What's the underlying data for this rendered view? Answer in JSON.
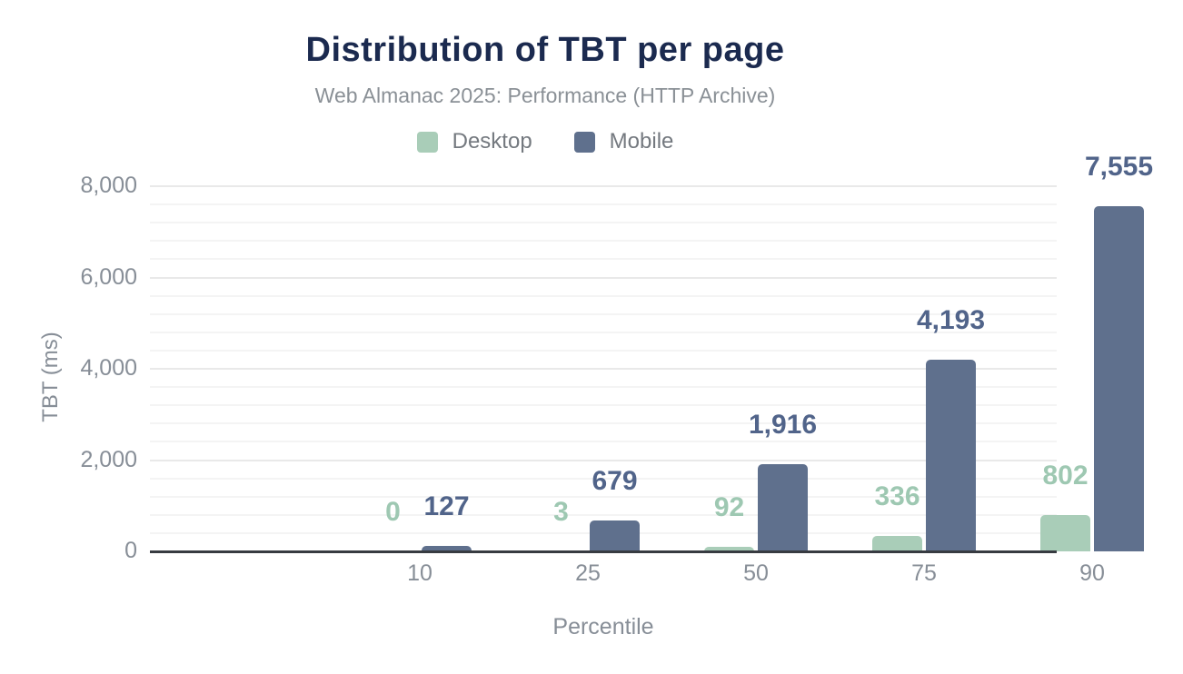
{
  "title": "Distribution of TBT per page",
  "subtitle": "Web Almanac 2025: Performance (HTTP Archive)",
  "legend": {
    "items": [
      {
        "label": "Desktop",
        "color": "#a9cdb8"
      },
      {
        "label": "Mobile",
        "color": "#5f708d"
      }
    ]
  },
  "colors": {
    "title": "#1b2a4f",
    "subtitle": "#8a9096",
    "axis_text": "#878e97",
    "axis_line": "#373b41",
    "grid_major": "#e9e9e9",
    "grid_minor": "#f4f4f4",
    "desktop": "#a9cdb8",
    "desktop_label": "#9ec8b2",
    "mobile": "#5f708d",
    "mobile_label": "#51648a"
  },
  "chart_data": {
    "type": "bar",
    "title": "Distribution of TBT per page",
    "subtitle": "Web Almanac 2025: Performance (HTTP Archive)",
    "categories": [
      "10",
      "25",
      "50",
      "75",
      "90"
    ],
    "series": [
      {
        "name": "Desktop",
        "color": "#a9cdb8",
        "label_color": "#9ec8b2",
        "values": [
          0,
          3,
          92,
          336,
          802
        ],
        "labels": [
          "0",
          "3",
          "92",
          "336",
          "802"
        ]
      },
      {
        "name": "Mobile",
        "color": "#5f708d",
        "label_color": "#51648a",
        "values": [
          127,
          679,
          1916,
          4193,
          7555
        ],
        "labels": [
          "127",
          "679",
          "1,916",
          "4,193",
          "7,555"
        ]
      }
    ],
    "xlabel": "Percentile",
    "ylabel": "TBT (ms)",
    "ylim": [
      0,
      8000
    ],
    "yticks": [
      0,
      2000,
      4000,
      6000,
      8000
    ],
    "ytick_labels": [
      "0",
      "2,000",
      "4,000",
      "6,000",
      "8,000"
    ],
    "minor_grid_step": 400,
    "grid": "on",
    "legend_position": "top"
  }
}
